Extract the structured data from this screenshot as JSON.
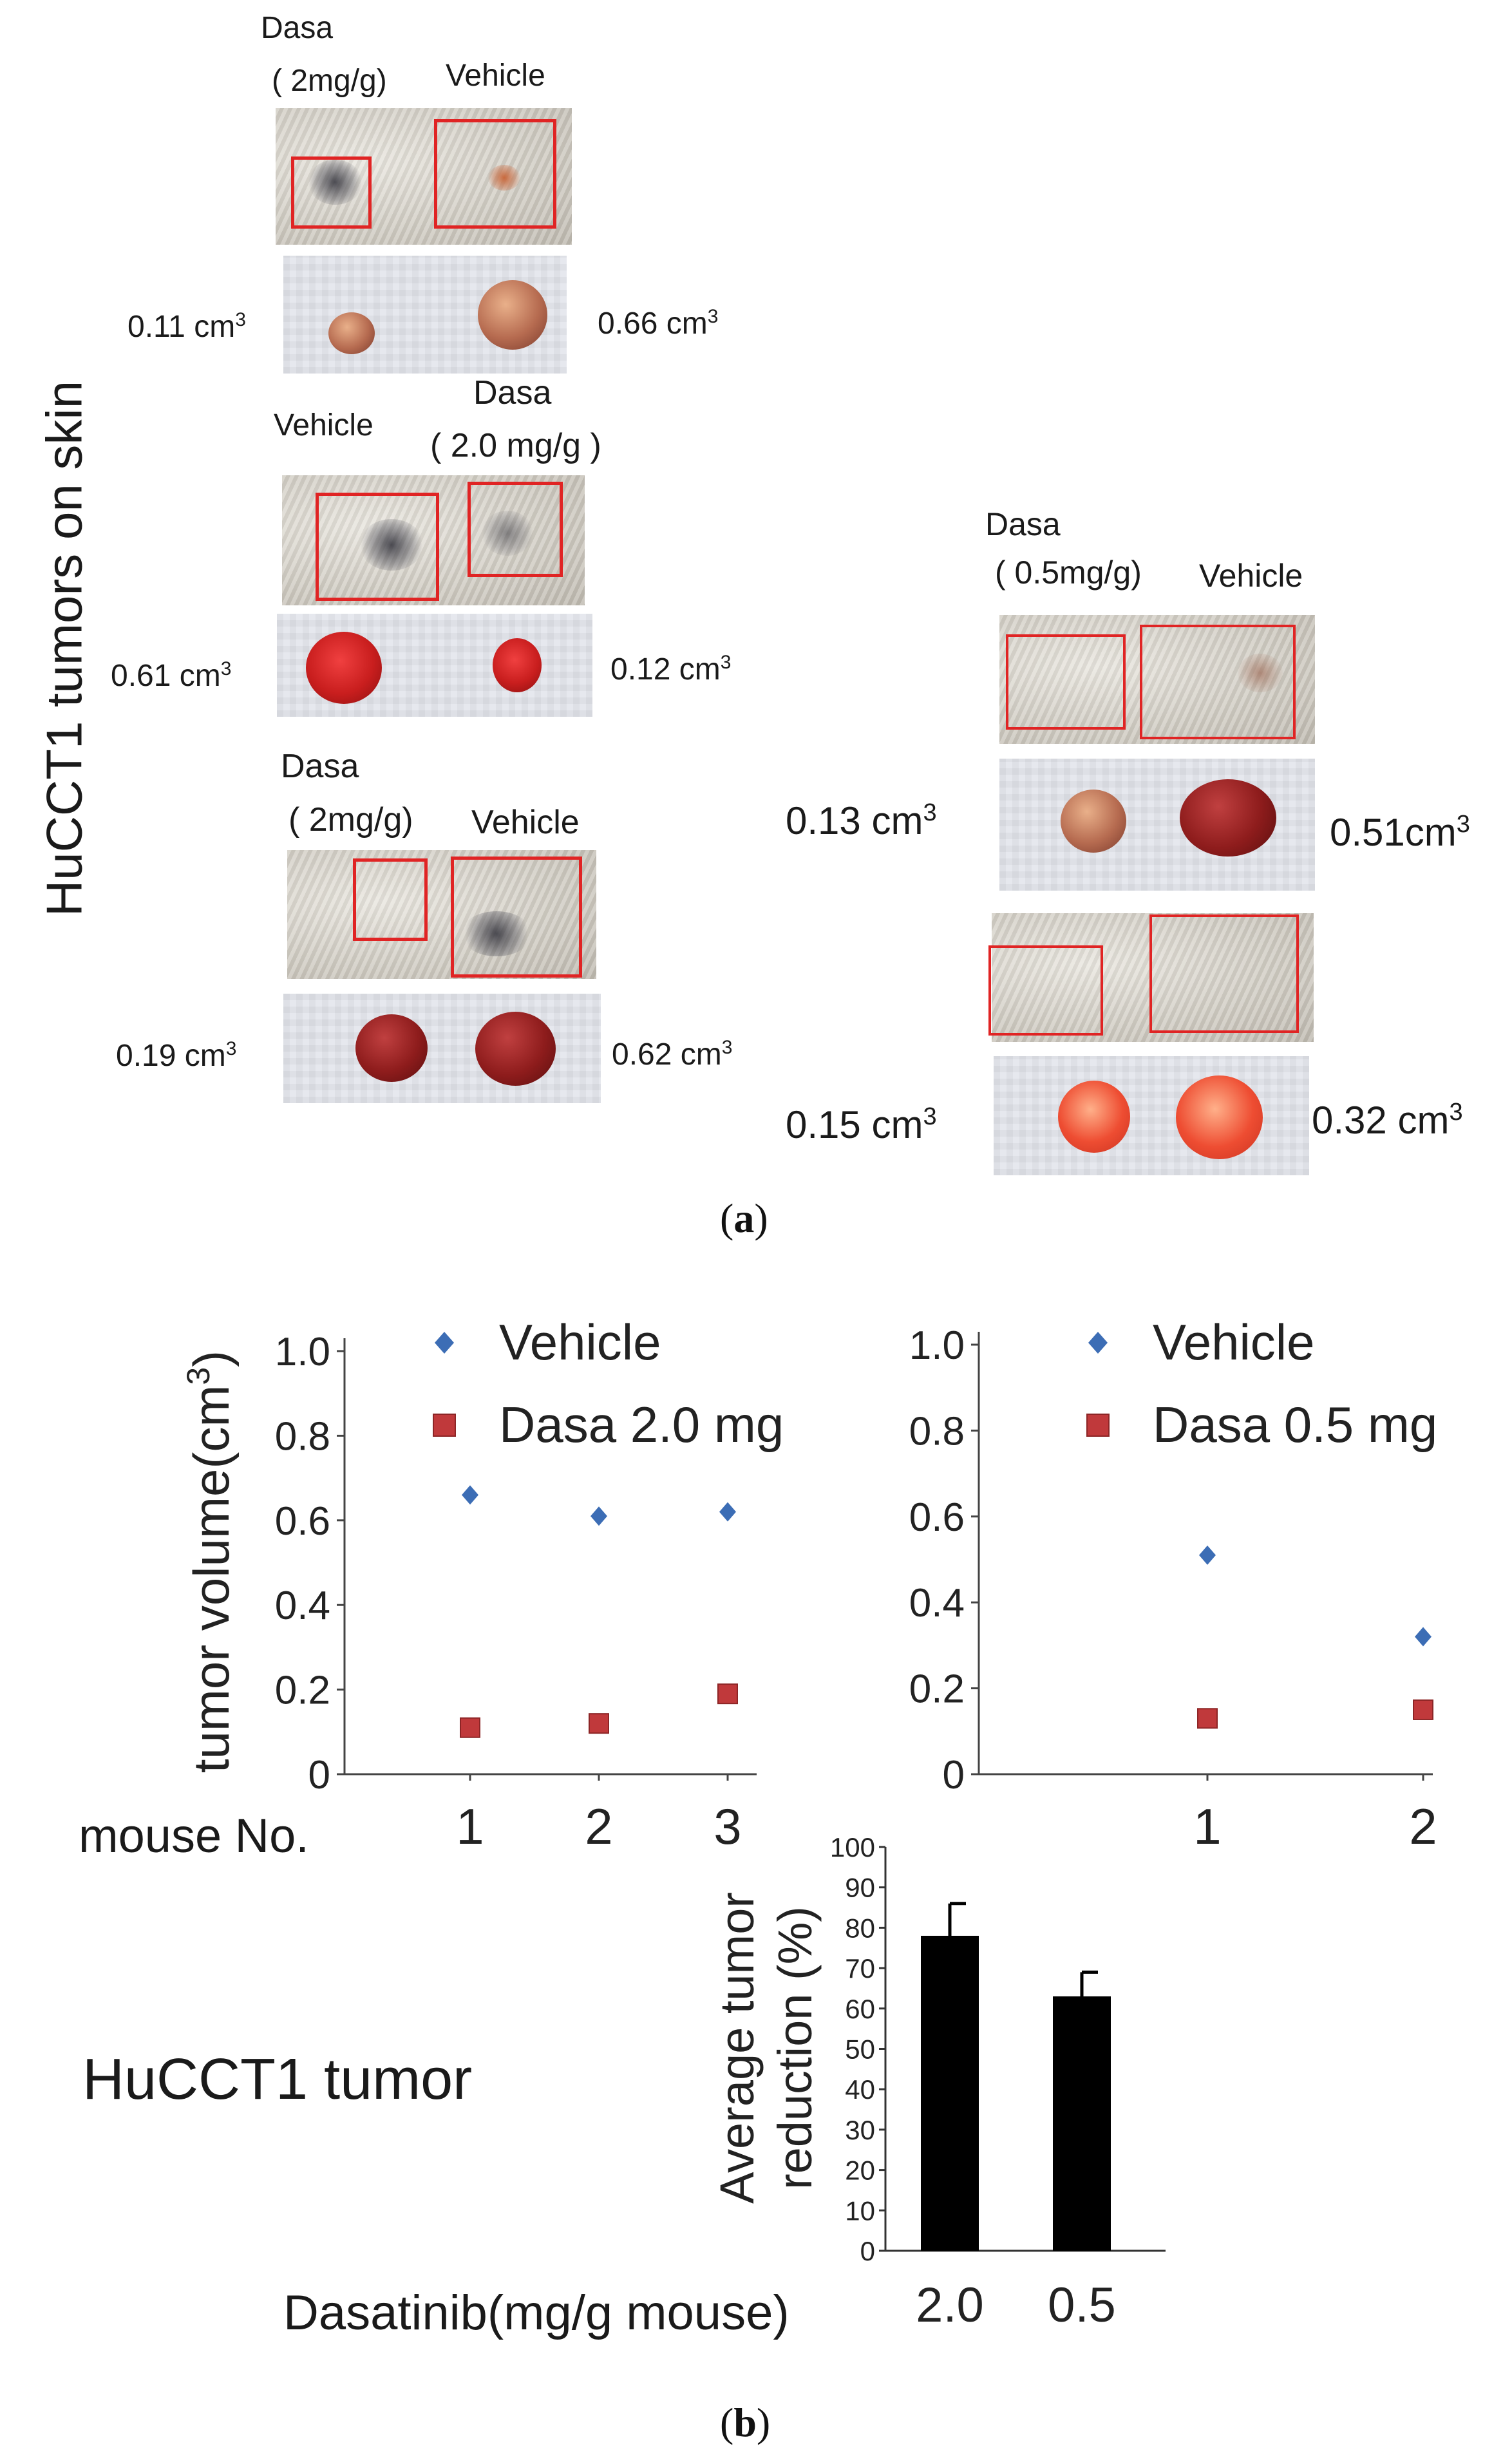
{
  "panel_a": {
    "letter": "a",
    "side_label": "HuCCT1 tumors on skin",
    "pairs": [
      {
        "label_left": "Dasa",
        "label_left_sub": "( 2mg/g)",
        "label_right": "Vehicle",
        "vol_left": "0.11 cm",
        "vol_right": "0.66 cm",
        "sup": "3"
      },
      {
        "label_left": "Vehicle",
        "label_right": "Dasa",
        "label_right_sub": "( 2.0 mg/g )",
        "vol_left": "0.61 cm",
        "vol_right": "0.12 cm",
        "sup": "3"
      },
      {
        "label_left": "Dasa",
        "label_left_sub": "( 2mg/g)",
        "label_right": "Vehicle",
        "vol_left": "0.19 cm",
        "vol_right": "0.62 cm",
        "sup": "3"
      },
      {
        "label_left": "Dasa",
        "label_left_sub": "( 0.5mg/g)",
        "label_right": "Vehicle",
        "vol_left": "0.13 cm",
        "vol_right": "0.51cm",
        "sup": "3"
      },
      {
        "vol_left": "0.15 cm",
        "vol_right": "0.32 cm",
        "sup": "3"
      }
    ]
  },
  "panel_b": {
    "letter": "b",
    "row_label": "mouse No.",
    "tumor_label": "HuCCT1 tumor",
    "colors": {
      "vehicle": "#3c6db5",
      "dasa": "#c0393b",
      "bar": "#000000"
    }
  },
  "chart_data": [
    {
      "type": "scatter",
      "title": "",
      "ylabel": "tumor volume(cm",
      "ylabel_sup": "3",
      "ylabel_close": ")",
      "xlabel": "mouse No.",
      "ylim": [
        0,
        1.0
      ],
      "yticks": [
        "0",
        "0.2",
        "0.4",
        "0.6",
        "0.8",
        "1.0"
      ],
      "categories": [
        "1",
        "2",
        "3"
      ],
      "series": [
        {
          "name": "Vehicle",
          "marker": "diamond",
          "values": [
            0.66,
            0.61,
            0.62
          ]
        },
        {
          "name": "Dasa 2.0 mg",
          "marker": "square",
          "values": [
            0.11,
            0.12,
            0.19
          ]
        }
      ]
    },
    {
      "type": "scatter",
      "title": "",
      "ylim": [
        0,
        1.0
      ],
      "yticks": [
        "0",
        "0.2",
        "0.4",
        "0.6",
        "0.8",
        "1.0"
      ],
      "categories": [
        "1",
        "2"
      ],
      "series": [
        {
          "name": "Vehicle",
          "marker": "diamond",
          "values": [
            0.51,
            0.32
          ]
        },
        {
          "name": "Dasa 0.5 mg",
          "marker": "square",
          "values": [
            0.13,
            0.15
          ]
        }
      ]
    },
    {
      "type": "bar",
      "title": "",
      "ylabel_line1": "Average tumor",
      "ylabel_line2": "reduction (%)",
      "xlabel": "Dasatinib(mg/g mouse)",
      "ylim": [
        0,
        100
      ],
      "yticks": [
        "0",
        "10",
        "20",
        "30",
        "40",
        "50",
        "60",
        "70",
        "80",
        "90",
        "100"
      ],
      "categories": [
        "2.0",
        "0.5"
      ],
      "values": [
        78,
        63
      ],
      "errors": [
        8,
        6
      ]
    }
  ]
}
